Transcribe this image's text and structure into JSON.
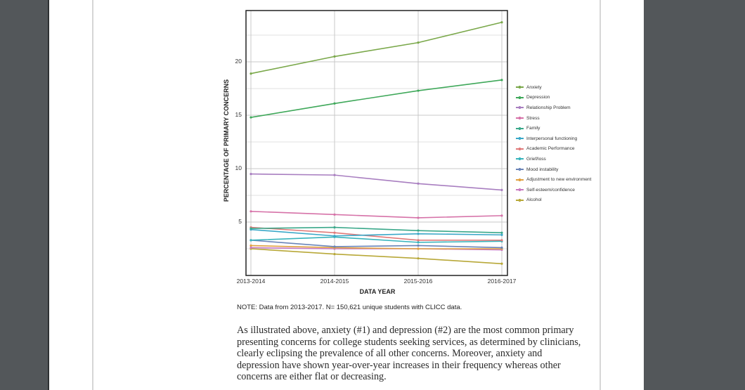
{
  "chart_data": {
    "type": "line",
    "title": "",
    "xlabel": "DATA YEAR",
    "ylabel": "PERCENTAGE OF PRIMARY CONCERNS",
    "categories": [
      "2013-2014",
      "2014-2015",
      "2015-2016",
      "2016-2017"
    ],
    "y_ticks": [
      5,
      10,
      15,
      20
    ],
    "ylim": [
      0,
      24.8
    ],
    "grid": true,
    "legend_position": "right",
    "series": [
      {
        "name": "Anxiety",
        "color": "#7aa84a",
        "values": [
          18.9,
          20.5,
          21.8,
          23.7
        ]
      },
      {
        "name": "Depression",
        "color": "#3fa85a",
        "values": [
          14.8,
          16.1,
          17.3,
          18.3
        ]
      },
      {
        "name": "Relationship Problem",
        "color": "#a87ec0",
        "values": [
          9.5,
          9.4,
          8.6,
          8.0
        ]
      },
      {
        "name": "Stress",
        "color": "#d672a8",
        "values": [
          6.0,
          5.7,
          5.4,
          5.6
        ]
      },
      {
        "name": "Family",
        "color": "#3aa88a",
        "values": [
          4.4,
          4.5,
          4.2,
          4.0
        ]
      },
      {
        "name": "Interpersonal functioning",
        "color": "#3aa8c8",
        "values": [
          4.3,
          3.7,
          3.9,
          3.8
        ]
      },
      {
        "name": "Academic Performance",
        "color": "#e07a7a",
        "values": [
          4.5,
          4.0,
          3.3,
          3.3
        ]
      },
      {
        "name": "Grief/loss",
        "color": "#38b4bc",
        "values": [
          3.3,
          3.6,
          3.1,
          3.2
        ]
      },
      {
        "name": "Mood instability",
        "color": "#6a84b8",
        "values": [
          3.3,
          2.7,
          2.8,
          2.6
        ]
      },
      {
        "name": "Adjustment to new environment",
        "color": "#e0a040",
        "values": [
          2.8,
          2.6,
          2.5,
          2.5
        ]
      },
      {
        "name": "Self-esteem/confidence",
        "color": "#c878c0",
        "values": [
          2.6,
          2.5,
          2.5,
          2.4
        ]
      },
      {
        "name": "Alcohol",
        "color": "#b8a838",
        "values": [
          2.5,
          2.0,
          1.6,
          1.1
        ]
      }
    ]
  },
  "note": "NOTE: Data from 2013-2017. N= 150,621 unique students with CLICC data.",
  "paragraph": "As illustrated above, anxiety (#1) and depression (#2) are the most common primary presenting concerns for college students seeking services, as determined by clinicians, clearly eclipsing the prevalence of all other concerns. Moreover, anxiety and depression have shown year-over-year increases in their frequency whereas other concerns are either flat or decreasing."
}
